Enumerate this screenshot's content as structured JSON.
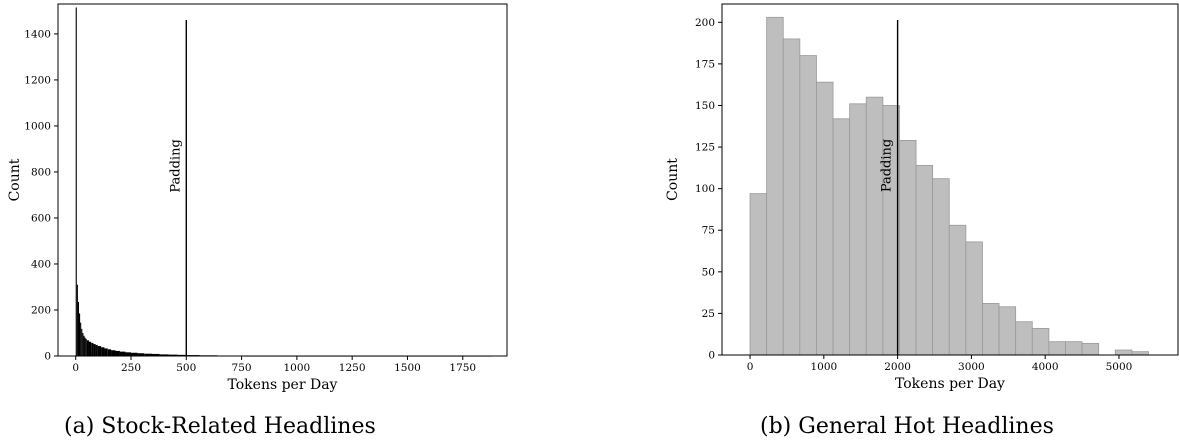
{
  "chart_data": [
    {
      "type": "bar",
      "subtype": "histogram",
      "caption": "(a) Stock-Related Headlines",
      "xlabel": "Tokens per Day",
      "ylabel": "Count",
      "xlim": [
        -80,
        1950
      ],
      "ylim": [
        0,
        1530
      ],
      "xticks": [
        0,
        250,
        500,
        750,
        1000,
        1250,
        1500,
        1750
      ],
      "yticks": [
        0,
        200,
        400,
        600,
        800,
        1000,
        1200,
        1400
      ],
      "bar_color": "#000000",
      "bins": [
        {
          "x0": 0,
          "x1": 5,
          "count": 1515
        },
        {
          "x0": 5,
          "x1": 10,
          "count": 310
        },
        {
          "x0": 10,
          "x1": 15,
          "count": 235
        },
        {
          "x0": 15,
          "x1": 20,
          "count": 185
        },
        {
          "x0": 20,
          "x1": 25,
          "count": 145
        },
        {
          "x0": 25,
          "x1": 30,
          "count": 118
        },
        {
          "x0": 30,
          "x1": 35,
          "count": 100
        },
        {
          "x0": 35,
          "x1": 40,
          "count": 88
        },
        {
          "x0": 40,
          "x1": 45,
          "count": 80
        },
        {
          "x0": 45,
          "x1": 50,
          "count": 74
        },
        {
          "x0": 50,
          "x1": 60,
          "count": 68
        },
        {
          "x0": 60,
          "x1": 70,
          "count": 62
        },
        {
          "x0": 70,
          "x1": 80,
          "count": 57
        },
        {
          "x0": 80,
          "x1": 90,
          "count": 52
        },
        {
          "x0": 90,
          "x1": 100,
          "count": 48
        },
        {
          "x0": 100,
          "x1": 115,
          "count": 43
        },
        {
          "x0": 115,
          "x1": 130,
          "count": 38
        },
        {
          "x0": 130,
          "x1": 145,
          "count": 33
        },
        {
          "x0": 145,
          "x1": 160,
          "count": 29
        },
        {
          "x0": 160,
          "x1": 180,
          "count": 25
        },
        {
          "x0": 180,
          "x1": 200,
          "count": 22
        },
        {
          "x0": 200,
          "x1": 225,
          "count": 19
        },
        {
          "x0": 225,
          "x1": 250,
          "count": 16
        },
        {
          "x0": 250,
          "x1": 280,
          "count": 14
        },
        {
          "x0": 280,
          "x1": 310,
          "count": 12
        },
        {
          "x0": 310,
          "x1": 345,
          "count": 10
        },
        {
          "x0": 345,
          "x1": 380,
          "count": 9
        },
        {
          "x0": 380,
          "x1": 420,
          "count": 7
        },
        {
          "x0": 420,
          "x1": 460,
          "count": 6
        },
        {
          "x0": 460,
          "x1": 500,
          "count": 5
        },
        {
          "x0": 500,
          "x1": 560,
          "count": 4
        },
        {
          "x0": 560,
          "x1": 640,
          "count": 3
        },
        {
          "x0": 640,
          "x1": 760,
          "count": 2
        },
        {
          "x0": 760,
          "x1": 1000,
          "count": 1
        },
        {
          "x0": 1000,
          "x1": 1400,
          "count": 1
        },
        {
          "x0": 1400,
          "x1": 1880,
          "count": 1
        }
      ],
      "vline": {
        "x": 500,
        "label": "Padding"
      }
    },
    {
      "type": "bar",
      "subtype": "histogram",
      "caption": "(b) General Hot Headlines",
      "xlabel": "Tokens per Day",
      "ylabel": "Count",
      "xlim": [
        -380,
        5800
      ],
      "ylim": [
        0,
        211
      ],
      "xticks": [
        0,
        1000,
        2000,
        3000,
        4000,
        5000
      ],
      "yticks": [
        0,
        25,
        50,
        75,
        100,
        125,
        150,
        175,
        200
      ],
      "bar_color": "#bebebe",
      "bar_edge": "#999999",
      "bin_width": 225,
      "bin_start": 0,
      "counts": [
        97,
        203,
        190,
        180,
        164,
        142,
        151,
        155,
        150,
        129,
        114,
        106,
        78,
        68,
        31,
        29,
        20,
        16,
        8,
        8,
        7,
        0,
        3,
        2
      ],
      "vline": {
        "x": 2000,
        "label": "Padding"
      }
    }
  ]
}
